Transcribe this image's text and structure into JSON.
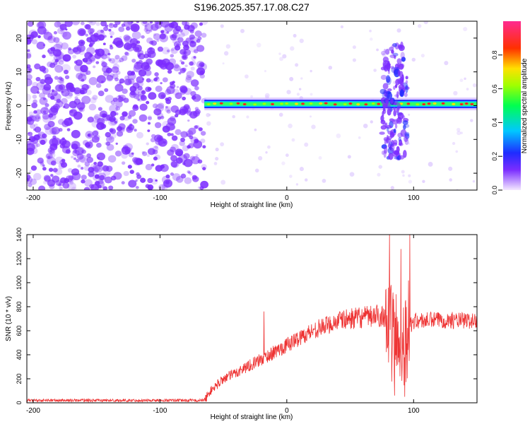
{
  "title": "S196.2025.357.17.08.C27",
  "colors": {
    "line": "#ee3333",
    "scatter": "#7b2bff",
    "axis": "#000000"
  },
  "chart_data": [
    {
      "type": "heatmap",
      "name": "spectrogram",
      "xlabel": "Height of straight line (km)",
      "ylabel": "Frequency (Hz)",
      "xlim": [
        -205,
        150
      ],
      "ylim": [
        -25,
        25
      ],
      "xticks": [
        -200,
        -100,
        0,
        100
      ],
      "yticks": [
        -20,
        -10,
        0,
        10,
        20
      ],
      "xtick_labels": [
        "-200",
        "-100",
        "0",
        "100"
      ],
      "ytick_labels": [
        "-20",
        "-10",
        "0",
        "10",
        "20"
      ],
      "noise_region_x": [
        -205,
        -65
      ],
      "tone_center_hz": 0.5,
      "disturbance_x": [
        75,
        95
      ],
      "colorbar": {
        "label": "Normalized spectral amplitude",
        "ticks": [
          0.0,
          0.2,
          0.4,
          0.6,
          0.8
        ],
        "tick_labels": [
          "0.0",
          "0.2",
          "0.4",
          "0.6",
          "0.8"
        ],
        "range": [
          0,
          1
        ]
      }
    },
    {
      "type": "line",
      "name": "snr",
      "xlabel": "Height of straight line (km)",
      "ylabel": "SNR (10 * v/v)",
      "xlim": [
        -205,
        150
      ],
      "ylim": [
        0,
        1400
      ],
      "xticks": [
        -200,
        -100,
        0,
        100
      ],
      "yticks": [
        0,
        200,
        400,
        600,
        800,
        1000,
        1200,
        1400
      ],
      "xtick_labels": [
        "-200",
        "-100",
        "0",
        "100"
      ],
      "ytick_labels": [
        "0",
        "200",
        "400",
        "600",
        "800",
        "1000",
        "1200",
        "1400"
      ],
      "series": [
        {
          "name": "SNR",
          "envelope": [
            {
              "x": -205,
              "y": 20
            },
            {
              "x": -65,
              "y": 20
            },
            {
              "x": -60,
              "y": 100
            },
            {
              "x": -50,
              "y": 200
            },
            {
              "x": -40,
              "y": 250
            },
            {
              "x": -30,
              "y": 310
            },
            {
              "x": -20,
              "y": 360
            },
            {
              "x": -10,
              "y": 420
            },
            {
              "x": 0,
              "y": 480
            },
            {
              "x": 10,
              "y": 540
            },
            {
              "x": 20,
              "y": 600
            },
            {
              "x": 30,
              "y": 640
            },
            {
              "x": 40,
              "y": 680
            },
            {
              "x": 50,
              "y": 700
            },
            {
              "x": 60,
              "y": 710
            },
            {
              "x": 70,
              "y": 720
            },
            {
              "x": 78,
              "y": 730
            },
            {
              "x": 82,
              "y": 600
            },
            {
              "x": 88,
              "y": 500
            },
            {
              "x": 95,
              "y": 600
            },
            {
              "x": 100,
              "y": 680
            },
            {
              "x": 120,
              "y": 690
            },
            {
              "x": 150,
              "y": 680
            }
          ],
          "spikes": [
            {
              "x": -18,
              "y": 760
            },
            {
              "x": 81,
              "y": 1400
            },
            {
              "x": 90,
              "y": 1280
            },
            {
              "x": 97,
              "y": 1400
            },
            {
              "x": 85,
              "y": 60
            },
            {
              "x": 93,
              "y": 50
            }
          ]
        }
      ]
    }
  ]
}
